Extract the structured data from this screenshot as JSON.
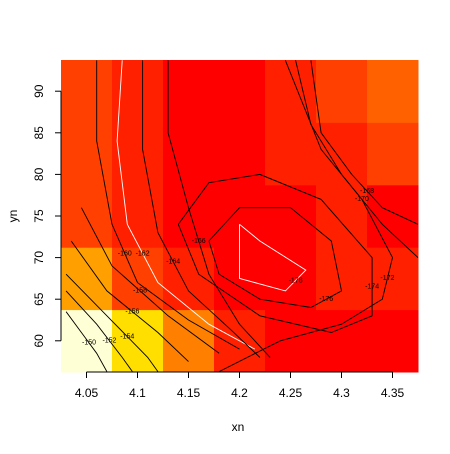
{
  "chart_data": {
    "type": "heatmap",
    "x_label": "xn",
    "y_label": "yn",
    "xlim": [
      4.025,
      4.375
    ],
    "ylim": [
      56.25,
      93.75
    ],
    "xticks": [
      4.05,
      4.1,
      4.15,
      4.2,
      4.25,
      4.3,
      4.35
    ],
    "yticks": [
      60,
      65,
      70,
      75,
      80,
      85,
      90
    ],
    "x": [
      4.05,
      4.1,
      4.15,
      4.2,
      4.25,
      4.3,
      4.35
    ],
    "y": [
      60,
      67.5,
      75,
      82.5,
      90
    ],
    "zlim": [
      -178,
      -150
    ],
    "palette": [
      "#FF0000",
      "#FF2000",
      "#FF4000",
      "#FF6000",
      "#FF8000",
      "#FF9F00",
      "#FFBF00",
      "#FFDF00",
      "#FFFF00",
      "#FFFF2A",
      "#FFFF80",
      "#FFFFD5"
    ],
    "z": [
      [
        -151,
        -160.5,
        -167.5,
        -175.5,
        -177,
        -177,
        -177
      ],
      [
        -165,
        -172.5,
        -175.5,
        -177,
        -177,
        -175.5,
        -175.5
      ],
      [
        -172.5,
        -175.5,
        -177,
        -177,
        -177,
        -175.5,
        -177
      ],
      [
        -172.5,
        -175.5,
        -177,
        -177,
        -175.5,
        -175.5,
        -172.5
      ],
      [
        -172.5,
        -175.5,
        -177,
        -177,
        -175.5,
        -172.5,
        -170
      ]
    ],
    "contours": [
      {
        "level": -150,
        "color": "#000000",
        "x": [
          4.03,
          4.045,
          4.06,
          4.07
        ],
        "y": [
          63.5,
          61,
          58.5,
          56.3
        ]
      },
      {
        "level": -152,
        "color": "#000000",
        "x": [
          4.03,
          4.06,
          4.085,
          4.095
        ],
        "y": [
          66,
          62,
          58,
          56.3
        ]
      },
      {
        "level": -154,
        "color": "#000000",
        "x": [
          4.03,
          4.07,
          4.11,
          4.12
        ],
        "y": [
          68,
          63,
          58,
          56.3
        ]
      },
      {
        "level": -156,
        "color": "#000000",
        "x": [
          4.035,
          4.07,
          4.12,
          4.15
        ],
        "y": [
          72,
          66,
          61,
          57.5
        ]
      },
      {
        "level": -158,
        "color": "#000000",
        "x": [
          4.045,
          4.075,
          4.13,
          4.18
        ],
        "y": [
          76,
          69,
          63,
          58.5
        ]
      },
      {
        "level": -160,
        "color": "#000000",
        "x": [
          4.06,
          4.06,
          4.075,
          4.1,
          4.15,
          4.2
        ],
        "y": [
          93.7,
          84,
          74,
          67,
          62.5,
          59
        ]
      },
      {
        "level": -162,
        "color": "#FFFFFF",
        "x": [
          4.085,
          4.08,
          4.09,
          4.12,
          4.17,
          4.215
        ],
        "y": [
          93.7,
          84,
          74,
          67,
          62,
          59
        ]
      },
      {
        "level": -164,
        "color": "#000000",
        "x": [
          4.105,
          4.105,
          4.12,
          4.15,
          4.19,
          4.22
        ],
        "y": [
          93.7,
          83,
          73,
          66,
          61.5,
          58
        ]
      },
      {
        "level": -166,
        "color": "#000000",
        "x": [
          4.13,
          4.13,
          4.15,
          4.17,
          4.2,
          4.23
        ],
        "y": [
          93.7,
          85,
          76,
          68,
          62,
          58
        ]
      },
      {
        "level": -168,
        "color": "#000000",
        "x": [
          4.27,
          4.28,
          4.31,
          4.34,
          4.375
        ],
        "y": [
          93.7,
          85,
          80,
          76,
          74
        ]
      },
      {
        "level": -170,
        "color": "#000000",
        "x": [
          4.255,
          4.27,
          4.3,
          4.34,
          4.375
        ],
        "y": [
          93.7,
          86,
          80,
          74,
          70
        ]
      },
      {
        "level": -172,
        "color": "#000000",
        "x": [
          4.18,
          4.24,
          4.3,
          4.34,
          4.35,
          4.32,
          4.28,
          4.245
        ],
        "y": [
          56.3,
          60,
          62,
          65,
          70,
          77,
          83,
          93.7
        ]
      },
      {
        "level": -174,
        "color": "#000000",
        "x": [
          4.14,
          4.17,
          4.22,
          4.28,
          4.33,
          4.33,
          4.29,
          4.22,
          4.16,
          4.14
        ],
        "y": [
          74,
          79,
          80,
          77,
          70,
          63,
          61,
          63,
          68,
          74
        ]
      },
      {
        "level": -176,
        "color": "#000000",
        "x": [
          4.17,
          4.2,
          4.25,
          4.29,
          4.3,
          4.27,
          4.22,
          4.18,
          4.17
        ],
        "y": [
          72,
          76,
          76,
          72,
          66,
          64,
          65,
          68,
          72
        ]
      },
      {
        "level": -178,
        "color": "#FFFFFF",
        "x": [
          4.2,
          4.2,
          4.245,
          4.265,
          4.22,
          4.2
        ],
        "y": [
          74,
          67.5,
          66,
          68.5,
          72,
          74
        ]
      }
    ]
  }
}
